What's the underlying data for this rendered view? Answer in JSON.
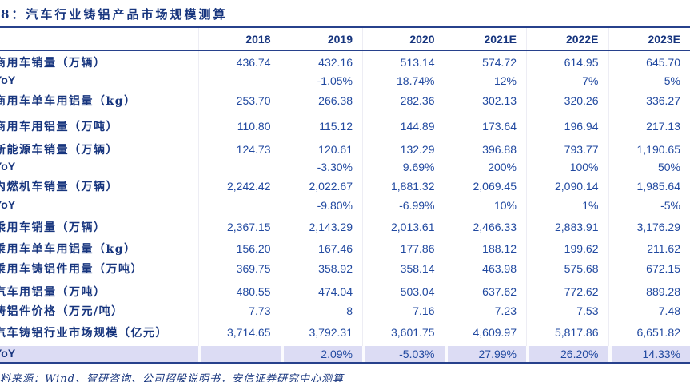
{
  "page": {
    "title": "8：汽车行业铸铝产品市场规模测算",
    "source_note": "料来源：Wind、智研咨询、公司招股说明书，安信证券研究中心测算"
  },
  "colors": {
    "accent_navy": "#17357e",
    "number_blue": "#2149a0",
    "border_navy": "#27418c",
    "highlight_row_bg": "#dcdcf4"
  },
  "table": {
    "columns": [
      "2018",
      "2019",
      "2020",
      "2021E",
      "2022E",
      "2023E"
    ],
    "rows": [
      {
        "label": "商用车销量（万辆）",
        "type": "data",
        "values": [
          "436.74",
          "432.16",
          "513.14",
          "574.72",
          "614.95",
          "645.70"
        ]
      },
      {
        "label": "YoY",
        "type": "yoy",
        "values": [
          "",
          "-1.05%",
          "18.74%",
          "12%",
          "7%",
          "5%"
        ]
      },
      {
        "label": "商用车单车用铝量（kg）",
        "type": "data",
        "values": [
          "253.70",
          "266.38",
          "282.36",
          "302.13",
          "320.26",
          "336.27"
        ]
      },
      {
        "label": "商用车用铝量（万吨）",
        "type": "data",
        "values": [
          "110.80",
          "115.12",
          "144.89",
          "173.64",
          "196.94",
          "217.13"
        ]
      },
      {
        "label": "新能源车销量（万辆）",
        "type": "data",
        "values": [
          "124.73",
          "120.61",
          "132.29",
          "396.88",
          "793.77",
          "1,190.65"
        ]
      },
      {
        "label": "YoY",
        "type": "yoy",
        "values": [
          "",
          "-3.30%",
          "9.69%",
          "200%",
          "100%",
          "50%"
        ]
      },
      {
        "label": "内燃机车销量（万辆）",
        "type": "data",
        "values": [
          "2,242.42",
          "2,022.67",
          "1,881.32",
          "2,069.45",
          "2,090.14",
          "1,985.64"
        ]
      },
      {
        "label": "YoY",
        "type": "yoy",
        "values": [
          "",
          "-9.80%",
          "-6.99%",
          "10%",
          "1%",
          "-5%"
        ]
      },
      {
        "label": "乘用车销量（万辆）",
        "type": "data",
        "values": [
          "2,367.15",
          "2,143.29",
          "2,013.61",
          "2,466.33",
          "2,883.91",
          "3,176.29"
        ]
      },
      {
        "label": "乘用车单车用铝量（kg）",
        "type": "data",
        "values": [
          "156.20",
          "167.46",
          "177.86",
          "188.12",
          "199.62",
          "211.62"
        ]
      },
      {
        "label": "乘用车铸铝件用量（万吨）",
        "type": "data",
        "values": [
          "369.75",
          "358.92",
          "358.14",
          "463.98",
          "575.68",
          "672.15"
        ]
      },
      {
        "label": "汽车用铝量（万吨）",
        "type": "data",
        "values": [
          "480.55",
          "474.04",
          "503.04",
          "637.62",
          "772.62",
          "889.28"
        ]
      },
      {
        "label": "铸铝件价格（万元/吨）",
        "type": "data",
        "values": [
          "7.73",
          "8",
          "7.16",
          "7.23",
          "7.53",
          "7.48"
        ]
      },
      {
        "label": "汽车铸铝行业市场规模（亿元）",
        "type": "data",
        "values": [
          "3,714.65",
          "3,792.31",
          "3,601.75",
          "4,609.97",
          "5,817.86",
          "6,651.82"
        ]
      },
      {
        "label": "YoY",
        "type": "yoy-highlight",
        "values": [
          "",
          "2.09%",
          "-5.03%",
          "27.99%",
          "26.20%",
          "14.33%"
        ]
      }
    ]
  }
}
